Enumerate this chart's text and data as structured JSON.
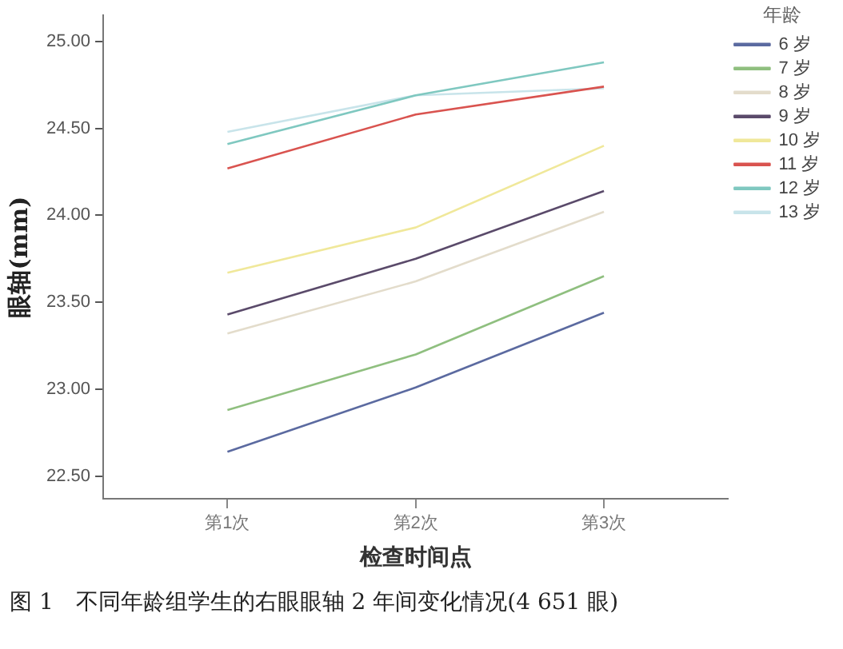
{
  "chart_data": {
    "type": "line",
    "xlabel": "检查时间点",
    "ylabel": "眼轴(mm)",
    "legend_title": "年龄",
    "legend": "top right",
    "grid": false,
    "marker": "none",
    "line_style": "solid",
    "categories": [
      "第1次",
      "第2次",
      "第3次"
    ],
    "ylim": [
      22.37,
      25.15
    ],
    "yticks": [
      {
        "value": 22.5,
        "label": "22.50"
      },
      {
        "value": 23,
        "label": "23.00"
      },
      {
        "value": 23.5,
        "label": "23.50"
      },
      {
        "value": 24,
        "label": "24.00"
      },
      {
        "value": 24.5,
        "label": "24.50"
      },
      {
        "value": 25,
        "label": "25.00"
      }
    ],
    "series": [
      {
        "name": "6 岁",
        "color": "#5b6aa0",
        "values": [
          22.64,
          23.01,
          23.44
        ]
      },
      {
        "name": "7 岁",
        "color": "#8fbf7f",
        "values": [
          22.88,
          23.2,
          23.65
        ]
      },
      {
        "name": "8 岁",
        "color": "#e3dccb",
        "values": [
          23.32,
          23.62,
          24.02
        ]
      },
      {
        "name": "9 岁",
        "color": "#5a4a6a",
        "values": [
          23.43,
          23.75,
          24.14
        ]
      },
      {
        "name": "10 岁",
        "color": "#f0e89a",
        "values": [
          23.67,
          23.93,
          24.4
        ]
      },
      {
        "name": "11 岁",
        "color": "#d9534f",
        "values": [
          24.27,
          24.58,
          24.74
        ]
      },
      {
        "name": "12 岁",
        "color": "#7fc8c0",
        "values": [
          24.41,
          24.69,
          24.88
        ]
      },
      {
        "name": "13 岁",
        "color": "#c8e4ea",
        "values": [
          24.48,
          24.69,
          24.73
        ]
      }
    ],
    "annotations": [
      "图 1　不同年龄组学生的右眼眼轴 2 年间变化情况(4 651 眼)"
    ]
  }
}
